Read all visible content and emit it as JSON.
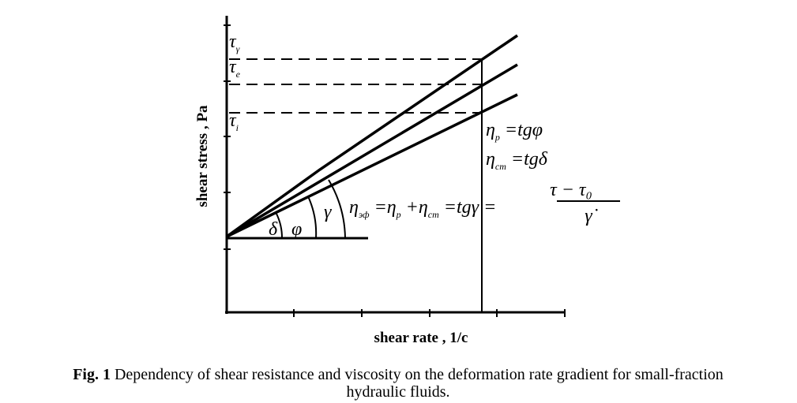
{
  "y_axis": {
    "label": "shear stress , Pa"
  },
  "x_axis": {
    "label": "shear rate , 1/c"
  },
  "levels": [
    {
      "symbol": "τ",
      "sub": "γ"
    },
    {
      "symbol": "τ",
      "sub": "e"
    },
    {
      "symbol": "τ",
      "sub": "i"
    }
  ],
  "angles": [
    "δ",
    "φ",
    "γ"
  ],
  "formulas": [
    [
      {
        "text": "η",
        "sub": "р"
      },
      {
        "text": " =tgφ"
      }
    ],
    [
      {
        "text": "η",
        "sub": "cm"
      },
      {
        "text": " =tgδ"
      }
    ],
    [
      {
        "text": "η",
        "sub": "эф"
      },
      {
        "text": " =η",
        "sub": "р"
      },
      {
        "text": " +η",
        "sub": "cm"
      },
      {
        "text": " =tgγ ="
      }
    ]
  ],
  "fraction": {
    "numerator": "τ − τ₀",
    "denominator": "γ̇"
  },
  "caption": {
    "label": "Fig. 1",
    "text": " Dependency of shear resistance and viscosity on the deformation rate gradient for small-fraction",
    "text2": "hydraulic fluids."
  }
}
